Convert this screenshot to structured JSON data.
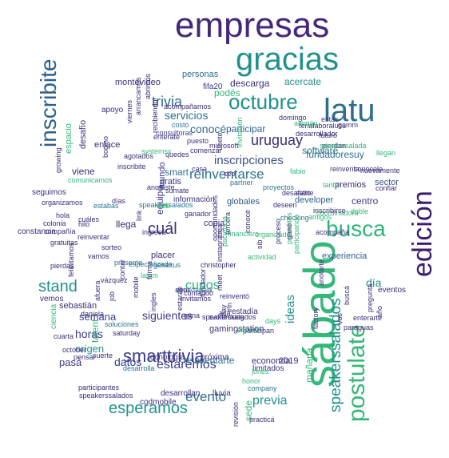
{
  "palette": {
    "purple": "#45277a",
    "indigo": "#3b3c8c",
    "blue": "#33658e",
    "teal": "#21918c",
    "green": "#2fb47c",
    "lime": "#7ad151"
  },
  "words": [
    {
      "text": "empresas",
      "color": "#45277a"
    },
    {
      "text": "gracias",
      "color": "#21918c"
    },
    {
      "text": "latu",
      "color": "#2c6e8e"
    },
    {
      "text": "octubre",
      "color": "#21918c"
    },
    {
      "text": "sábado",
      "color": "#35b779"
    },
    {
      "text": "busca",
      "color": "#2fb47c"
    },
    {
      "text": "edición",
      "color": "#3b1f6e"
    },
    {
      "text": "postulate",
      "color": "#35b779"
    },
    {
      "text": "smarttrivia",
      "color": "#3b3c8c"
    },
    {
      "text": "inscribite",
      "color": "#2c5f8e"
    },
    {
      "text": "stand",
      "color": "#21918c"
    },
    {
      "text": "esperamos",
      "color": "#21918c"
    },
    {
      "text": "speakerssalados",
      "color": "#21918c"
    },
    {
      "text": "uruguay",
      "color": "#3b2f78"
    },
    {
      "text": "trivia",
      "color": "#2e6e8e"
    },
    {
      "text": "reinventarse",
      "color": "#2c728e"
    },
    {
      "text": "inscripciones",
      "color": "#3b528b"
    },
    {
      "text": "cuál",
      "color": "#3b2f78"
    },
    {
      "text": "estaremos",
      "color": "#3b3c8c"
    },
    {
      "text": "evento",
      "color": "#2c6e8e"
    },
    {
      "text": "previa",
      "color": "#21918c"
    },
    {
      "text": "conocé",
      "color": "#2e6e8e"
    },
    {
      "text": "servicios",
      "color": "#2e6e8e"
    },
    {
      "text": "descarga",
      "color": "#3b2f78"
    },
    {
      "text": "acercate",
      "color": "#21918c"
    },
    {
      "text": "participar",
      "color": "#2c5f8e"
    },
    {
      "text": "fundadoresuy",
      "color": "#2c728e"
    },
    {
      "text": "software",
      "color": "#2c728e"
    },
    {
      "text": "montevideo",
      "color": "#3b2f78"
    },
    {
      "text": "personas",
      "color": "#2e6e8e"
    },
    {
      "text": "fifa20",
      "color": "#3b3c8c"
    },
    {
      "text": "podés",
      "color": "#35b779"
    },
    {
      "text": "viene",
      "color": "#3b2f78"
    },
    {
      "text": "smart",
      "color": "#2c728e"
    },
    {
      "text": "gratis",
      "color": "#3b2f78"
    },
    {
      "text": "mundo",
      "color": "#3b3c8c"
    },
    {
      "text": "centro",
      "color": "#3b3c8c"
    },
    {
      "text": "premios",
      "color": "#3b2f78"
    },
    {
      "text": "sector",
      "color": "#3b528b"
    },
    {
      "text": "developer",
      "color": "#2c5f8e"
    },
    {
      "text": "globales",
      "color": "#2c5f8e"
    },
    {
      "text": "información",
      "color": "#3b2f78"
    },
    {
      "text": "llega",
      "color": "#3b2f78"
    },
    {
      "text": "equipo",
      "color": "#3b3c8c"
    },
    {
      "text": "copia",
      "color": "#3b2f78"
    },
    {
      "text": "placer",
      "color": "#3b2f78"
    },
    {
      "text": "cupos",
      "color": "#2fb47c"
    },
    {
      "text": "experiencia",
      "color": "#2c5f8e"
    },
    {
      "text": "día",
      "color": "#21918c"
    },
    {
      "text": "eventos",
      "color": "#3b2f78"
    },
    {
      "text": "semana",
      "color": "#3b3c8c"
    },
    {
      "text": "siguientes",
      "color": "#3b3c8c"
    },
    {
      "text": "horas",
      "color": "#3b3c8c"
    },
    {
      "text": "origen",
      "color": "#21918c"
    },
    {
      "text": "datos",
      "color": "#3b3c8c"
    },
    {
      "text": "reinventarte",
      "color": "#2c728e"
    },
    {
      "text": "economía",
      "color": "#3b2f78"
    },
    {
      "text": "2019",
      "color": "#3b2f78"
    },
    {
      "text": "ideas",
      "color": "#21918c"
    },
    {
      "text": "mañana",
      "color": "#35b779"
    },
    {
      "text": "gamingstation",
      "color": "#3b2f78"
    },
    {
      "text": "talent",
      "color": "#35b779"
    },
    {
      "text": "pasá",
      "color": "#3b3c8c"
    },
    {
      "text": "tecnología",
      "color": "#3b2f78"
    },
    {
      "text": "próxima",
      "color": "#3b2f78"
    },
    {
      "text": "desarrolla",
      "color": "#2c728e"
    },
    {
      "text": "desarrollan",
      "color": "#3b2f78"
    },
    {
      "text": "codmobile",
      "color": "#3b2f78"
    },
    {
      "text": "lluvia",
      "color": "#3b2f78"
    },
    {
      "text": "limitados",
      "color": "#3b2f78"
    },
    {
      "text": "sede",
      "color": "#35b779"
    },
    {
      "text": "practicá",
      "color": "#3b2f78"
    },
    {
      "text": "company",
      "color": "#2c728e"
    },
    {
      "text": "speakerssalados",
      "color": "#3b2f78"
    },
    {
      "text": "apoyo",
      "color": "#3b2f78"
    },
    {
      "text": "acompañamos",
      "color": "#3b2f78"
    },
    {
      "text": "costo",
      "color": "#2c728e"
    },
    {
      "text": "consultoras",
      "color": "#3b3c8c"
    },
    {
      "text": "enterate",
      "color": "#3b2f78"
    },
    {
      "text": "comenzar",
      "color": "#3b2f78"
    },
    {
      "text": "quedes",
      "color": "#3b2f78"
    },
    {
      "text": "agotados",
      "color": "#3b2f78"
    },
    {
      "text": "systemsx",
      "color": "#35b779"
    },
    {
      "text": "inscribite",
      "color": "#3b2f78"
    },
    {
      "text": "comunicamos",
      "color": "#35b779"
    },
    {
      "text": "seguimos",
      "color": "#3b2f78"
    },
    {
      "text": "días",
      "color": "#3b2f78"
    },
    {
      "text": "organizamos",
      "color": "#3b2f78"
    },
    {
      "text": "estabas",
      "color": "#2c728e"
    },
    {
      "text": "speakerssalados",
      "color": "#2c728e"
    },
    {
      "text": "hola",
      "color": "#3b2f78"
    },
    {
      "text": "colonia",
      "color": "#3b2f78"
    },
    {
      "text": "compañía",
      "color": "#3b2f78"
    },
    {
      "text": "cuáles",
      "color": "#3b2f78"
    },
    {
      "text": "ingresá",
      "color": "#3b2f78"
    },
    {
      "text": "reinventar",
      "color": "#3b2f78"
    },
    {
      "text": "constancia",
      "color": "#3b2f78"
    },
    {
      "text": "gratuitas",
      "color": "#3b2f78"
    },
    {
      "text": "sorteo",
      "color": "#3b2f78"
    },
    {
      "text": "especializada",
      "color": "#2c728e"
    },
    {
      "text": "genexus",
      "color": "#2c728e"
    },
    {
      "text": "vamos",
      "color": "#3b2f78"
    },
    {
      "text": "vemos",
      "color": "#3b2f78"
    },
    {
      "text": "vázquez",
      "color": "#3b2f78"
    },
    {
      "text": "pierdas",
      "color": "#3b2f78"
    },
    {
      "text": "latam",
      "color": "#35b779"
    },
    {
      "text": "aguadapark",
      "color": "#2c728e"
    },
    {
      "text": "invitamos",
      "color": "#3b2f78"
    },
    {
      "text": "sebastián",
      "color": "#3b2f78"
    },
    {
      "text": "ciencia",
      "color": "#35b779"
    },
    {
      "text": "soluciones",
      "color": "#2c728e"
    },
    {
      "text": "saturday",
      "color": "#3b2f78"
    },
    {
      "text": "suerte",
      "color": "#3b2f78"
    },
    {
      "text": "participantes",
      "color": "#3b2f78"
    },
    {
      "text": "speakerssalados",
      "color": "#3b2f78"
    },
    {
      "text": "cvchecking",
      "color": "#3b2f78"
    },
    {
      "text": "gana",
      "color": "#3b2f78"
    },
    {
      "text": "reinventó",
      "color": "#3b2f78"
    },
    {
      "text": "estadía",
      "color": "#3b2f78"
    },
    {
      "text": "participan",
      "color": "#3b2f78"
    },
    {
      "text": "espero",
      "color": "#35b779"
    },
    {
      "text": "days",
      "color": "#35b779"
    },
    {
      "text": "honor",
      "color": "#35b779"
    },
    {
      "text": "jones",
      "color": "#35b779"
    },
    {
      "text": "revisión",
      "color": "#3b2f78"
    },
    {
      "text": "financiero",
      "color": "#35b779"
    },
    {
      "text": "acompaña",
      "color": "#3b2f78"
    },
    {
      "text": "pierdan",
      "color": "#3b2f78"
    },
    {
      "text": "nuevamente",
      "color": "#3b2f78"
    },
    {
      "text": "desarrollador",
      "color": "#3b2f78"
    },
    {
      "text": "ferialaboralucu",
      "color": "#3b2f78"
    },
    {
      "text": "coordinadora",
      "color": "#35b779"
    },
    {
      "text": "inscribirse",
      "color": "#3b2f78"
    },
    {
      "text": "amigos",
      "color": "#35b779"
    },
    {
      "text": "doble",
      "color": "#35b779"
    },
    {
      "text": "desafiarte",
      "color": "#3b2f78"
    },
    {
      "text": "salto",
      "color": "#3b2f78"
    },
    {
      "text": "tanta",
      "color": "#35b779"
    },
    {
      "text": "confiar",
      "color": "#3b2f78"
    },
    {
      "text": "llegan",
      "color": "#35b779"
    },
    {
      "text": "fabio",
      "color": "#35b779"
    },
    {
      "text": "reinventa",
      "color": "#3b2f78"
    },
    {
      "text": "conocelo",
      "color": "#3b2f78"
    },
    {
      "text": "gamm",
      "color": "#3b2f78"
    },
    {
      "text": "speakersalada",
      "color": "#35b779"
    },
    {
      "text": "futuro",
      "color": "#3b2f78"
    },
    {
      "text": "alemán",
      "color": "#35b779"
    },
    {
      "text": "estás",
      "color": "#3b2f78"
    },
    {
      "text": "domingo",
      "color": "#3b2f78"
    },
    {
      "text": "ceo",
      "color": "#3b2f78"
    },
    {
      "text": "partner",
      "color": "#2c728e"
    },
    {
      "text": "proyectos",
      "color": "#2c728e"
    },
    {
      "text": "anotaste",
      "color": "#3b2f78"
    },
    {
      "text": "sumate",
      "color": "#3b2f78"
    },
    {
      "text": "deseen",
      "color": "#3b2f78"
    },
    {
      "text": "enlace",
      "color": "#3b2f78"
    },
    {
      "text": "desafío",
      "color": "#3b2f78"
    },
    {
      "text": "espacio",
      "color": "#35b779"
    },
    {
      "text": "felicitamos",
      "color": "#3b2f78"
    },
    {
      "text": "presente",
      "color": "#2c728e"
    },
    {
      "text": "forma",
      "color": "#3b2f78"
    },
    {
      "text": "veni",
      "color": "#3b2f78"
    },
    {
      "text": "contando",
      "color": "#3b2f78"
    },
    {
      "text": "meet",
      "color": "#3b2f78"
    },
    {
      "text": "acá",
      "color": "#3b2f78"
    },
    {
      "text": "inn",
      "color": "#3b2f78"
    },
    {
      "text": "day",
      "color": "#3b2f78"
    },
    {
      "text": "fundador",
      "color": "#3b2f78"
    },
    {
      "text": "estarán",
      "color": "#3b2f78"
    },
    {
      "text": "casa",
      "color": "#3b2f78"
    },
    {
      "text": "hilo",
      "color": "#3b2f78"
    },
    {
      "text": "daniela",
      "color": "#3b2f78"
    },
    {
      "text": "cuarta",
      "color": "#3b2f78"
    },
    {
      "text": "october",
      "color": "#3b2f78"
    },
    {
      "text": "pensar",
      "color": "#3b2f78"
    },
    {
      "text": "checking",
      "color": "#2c728e"
    },
    {
      "text": "anotarte",
      "color": "#3b2f78"
    },
    {
      "text": "enterarte",
      "color": "#3b2f78"
    },
    {
      "text": "buscá",
      "color": "#3b2f78"
    },
    {
      "text": "pregunta",
      "color": "#3b2f78"
    },
    {
      "text": "año",
      "color": "#3b2f78"
    },
    {
      "text": "vos",
      "color": "#3b2f78"
    },
    {
      "text": "paraguas",
      "color": "#3b2f78"
    },
    {
      "text": "factory",
      "color": "#3b2f78"
    },
    {
      "text": "presentes",
      "color": "#35b779"
    },
    {
      "text": "participando",
      "color": "#35b779"
    },
    {
      "text": "ganó",
      "color": "#3b2f78"
    },
    {
      "text": "proceso",
      "color": "#3b2f78"
    },
    {
      "text": "actividad",
      "color": "#35b779"
    },
    {
      "text": "christopher",
      "color": "#3b2f78"
    },
    {
      "text": "oportunidades",
      "color": "#3b2f78"
    },
    {
      "text": "instagram",
      "color": "#3b2f78"
    },
    {
      "text": "sib",
      "color": "#3b2f78"
    },
    {
      "text": "organizado",
      "color": "#35b779"
    },
    {
      "text": "conocé",
      "color": "#3b2f78"
    },
    {
      "text": "juga",
      "color": "#3b2f78"
    },
    {
      "text": "tercera",
      "color": "#3b2f78"
    },
    {
      "text": "paciencia",
      "color": "#35b779"
    },
    {
      "text": "ganador",
      "color": "#3b2f78"
    },
    {
      "text": "link",
      "color": "#3b2f78"
    },
    {
      "text": "job",
      "color": "#3b2f78"
    },
    {
      "text": "contar",
      "color": "#3b2f78"
    },
    {
      "text": "afuera",
      "color": "#3b2f78"
    },
    {
      "text": "mobile",
      "color": "#3b2f78"
    },
    {
      "text": "ingles",
      "color": "#3b2f78"
    },
    {
      "text": "web",
      "color": "#35b779"
    },
    {
      "text": "growing",
      "color": "#3b2f78"
    },
    {
      "text": "bogino",
      "color": "#3b2f78"
    },
    {
      "text": "viernes",
      "color": "#3b2f78"
    },
    {
      "text": "recibiendo",
      "color": "#3b2f78"
    },
    {
      "text": "arrancamos",
      "color": "#3b2f78"
    },
    {
      "text": "abrimos",
      "color": "#3b2f78"
    },
    {
      "text": "únete",
      "color": "#3b2f78"
    },
    {
      "text": "invitación",
      "color": "#35b779"
    },
    {
      "text": "microsoft",
      "color": "#3b2f78"
    },
    {
      "text": "puesto",
      "color": "#3b2f78"
    },
    {
      "text": "innovadoras",
      "color": "#35b779"
    },
    {
      "text": "falta",
      "color": "#2c728e"
    },
    {
      "text": "tuya",
      "color": "#2c728e"
    },
    {
      "text": "aprovechar",
      "color": "#3b2f78"
    },
    {
      "text": "argentina",
      "color": "#3b2f78"
    },
    {
      "text": "ambiente",
      "color": "#3b2f78"
    },
    {
      "text": "llegó",
      "color": "#35b779"
    }
  ]
}
